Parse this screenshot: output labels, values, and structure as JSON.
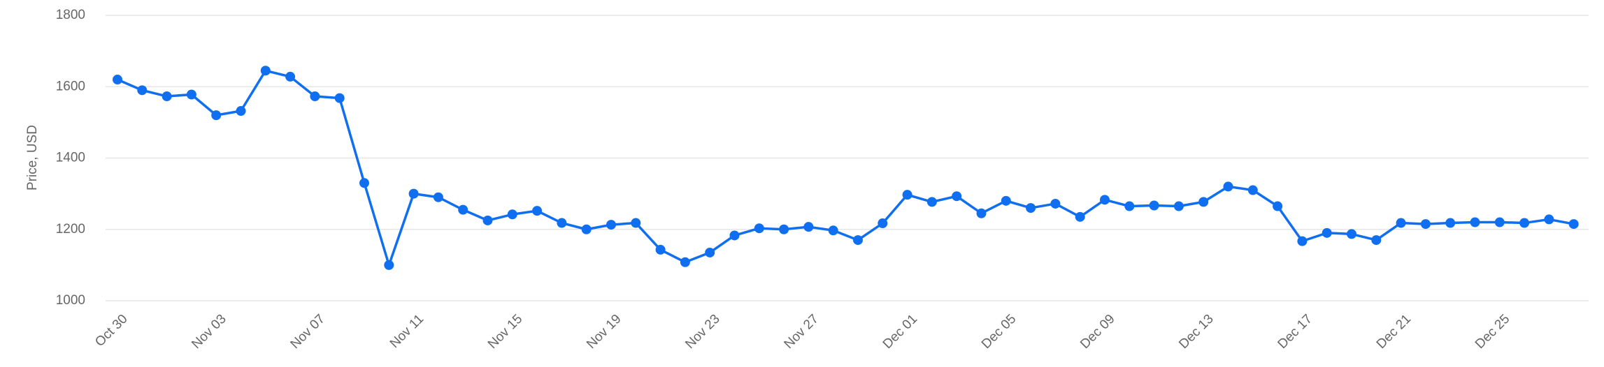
{
  "chart_data": {
    "type": "line",
    "y_label": "Price, USD",
    "color": "#0f6ff0",
    "categories": [
      "Oct 30",
      null,
      null,
      null,
      "Nov 03",
      null,
      null,
      null,
      "Nov 07",
      null,
      null,
      null,
      "Nov 11",
      null,
      null,
      null,
      "Nov 15",
      null,
      null,
      null,
      "Nov 19",
      null,
      null,
      null,
      "Nov 23",
      null,
      null,
      null,
      "Nov 27",
      null,
      null,
      null,
      "Dec 01",
      null,
      null,
      null,
      "Dec 05",
      null,
      null,
      null,
      "Dec 09",
      null,
      null,
      null,
      "Dec 13",
      null,
      null,
      null,
      "Dec 17",
      null,
      null,
      null,
      "Dec 21",
      null,
      null,
      null,
      "Dec 25",
      null,
      null,
      null
    ],
    "values": [
      1620,
      1590,
      1573,
      1578,
      1520,
      1532,
      1645,
      1628,
      1573,
      1568,
      1330,
      1100,
      1300,
      1290,
      1255,
      1225,
      1242,
      1252,
      1218,
      1200,
      1213,
      1218,
      1143,
      1108,
      1135,
      1183,
      1203,
      1200,
      1207,
      1197,
      1170,
      1217,
      1297,
      1277,
      1293,
      1245,
      1280,
      1260,
      1272,
      1235,
      1283,
      1265,
      1267,
      1265,
      1277,
      1320,
      1310,
      1265,
      1167,
      1190,
      1187,
      1170,
      1218,
      1215,
      1218,
      1220,
      1220,
      1218,
      1228,
      1215
    ],
    "ylim": [
      1000,
      1800
    ],
    "yticks": [
      1000,
      1200,
      1400,
      1600,
      1800
    ],
    "grid": true
  }
}
